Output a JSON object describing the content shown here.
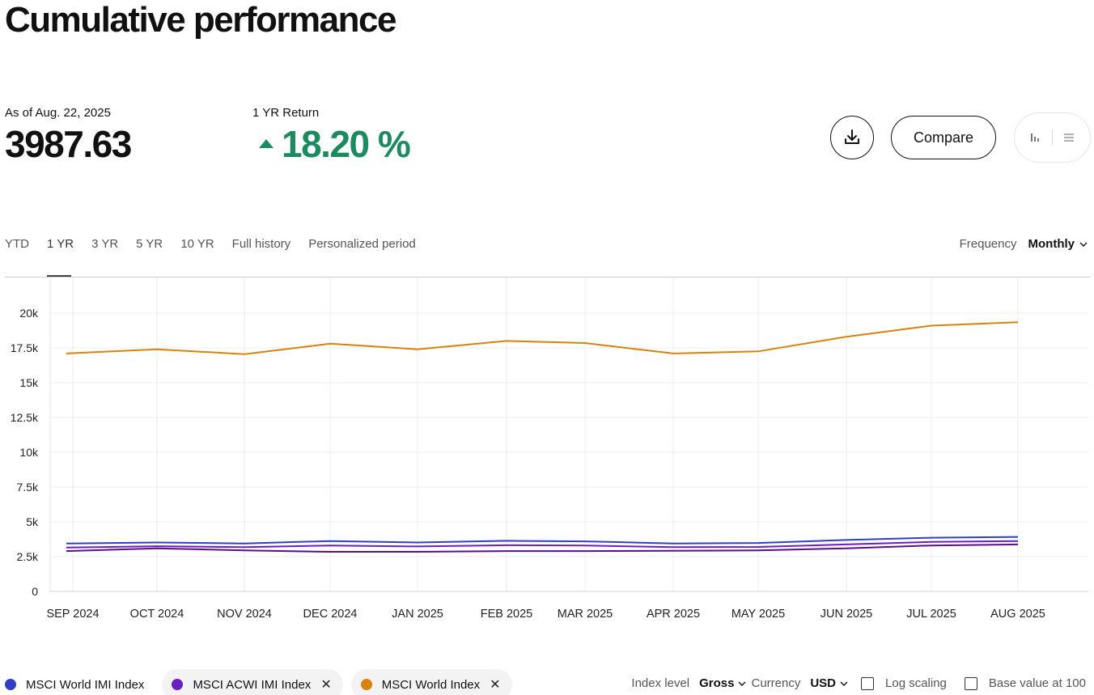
{
  "header": {
    "title": "Cumulative performance"
  },
  "stats": {
    "asof_label": "As of Aug. 22, 2025",
    "value": "3987.63",
    "return_label": "1 YR Return",
    "return_value": "18.20 %"
  },
  "actions": {
    "compare_label": "Compare",
    "download_icon": "download-icon",
    "chart_view_icon": "bar-chart-icon",
    "table_view_icon": "list-icon"
  },
  "periods": {
    "tabs": [
      "YTD",
      "1 YR",
      "3 YR",
      "5 YR",
      "10 YR",
      "Full history",
      "Personalized period"
    ],
    "active": "1 YR"
  },
  "frequency": {
    "label": "Frequency",
    "value": "Monthly"
  },
  "colors": {
    "world_imi": "#2f3fc6",
    "acwi_imi": "#6a1fc2",
    "world": "#d9820d",
    "positive": "#1d8a5f"
  },
  "chart_data": {
    "type": "line",
    "categories": [
      "SEP 2024",
      "OCT 2024",
      "NOV 2024",
      "DEC 2024",
      "JAN 2025",
      "FEB 2025",
      "MAR 2025",
      "APR 2025",
      "MAY 2025",
      "JUN 2025",
      "JUL 2025",
      "AUG 2025"
    ],
    "y_ticks": [
      "0",
      "2.5k",
      "5k",
      "7.5k",
      "10k",
      "12.5k",
      "15k",
      "17.5k",
      "20k"
    ],
    "ylim": [
      0,
      22000
    ],
    "grid": true,
    "series": [
      {
        "name": "MSCI World Index",
        "color": "#d9820d",
        "values": [
          17100,
          17400,
          17050,
          17800,
          17400,
          18000,
          17850,
          17100,
          17250,
          18300,
          19100,
          19350
        ]
      },
      {
        "name": "MSCI World IMI Index",
        "color": "#2f3fc6",
        "values": [
          3450,
          3520,
          3450,
          3620,
          3520,
          3640,
          3600,
          3450,
          3480,
          3700,
          3860,
          3920
        ]
      },
      {
        "name": "MSCI ACWI IMI Index",
        "color": "#6a1fc2",
        "values": [
          3150,
          3250,
          3180,
          3300,
          3230,
          3320,
          3300,
          3180,
          3200,
          3380,
          3560,
          3620
        ]
      },
      {
        "color": "#5b0e8a",
        "values": [
          2900,
          3100,
          2950,
          2850,
          2850,
          2900,
          2900,
          2920,
          2950,
          3100,
          3300,
          3380
        ]
      }
    ]
  },
  "legend": [
    {
      "label": "MSCI World IMI Index",
      "color": "#2f3fc6",
      "removable": false
    },
    {
      "label": "MSCI ACWI IMI Index",
      "color": "#6a1fc2",
      "removable": true
    },
    {
      "label": "MSCI World Index",
      "color": "#d9820d",
      "removable": true
    }
  ],
  "controls": {
    "index_level_label": "Index level",
    "index_level_value": "Gross",
    "currency_label": "Currency",
    "currency_value": "USD",
    "log_scaling_label": "Log scaling",
    "base_value_label": "Base value at 100"
  }
}
